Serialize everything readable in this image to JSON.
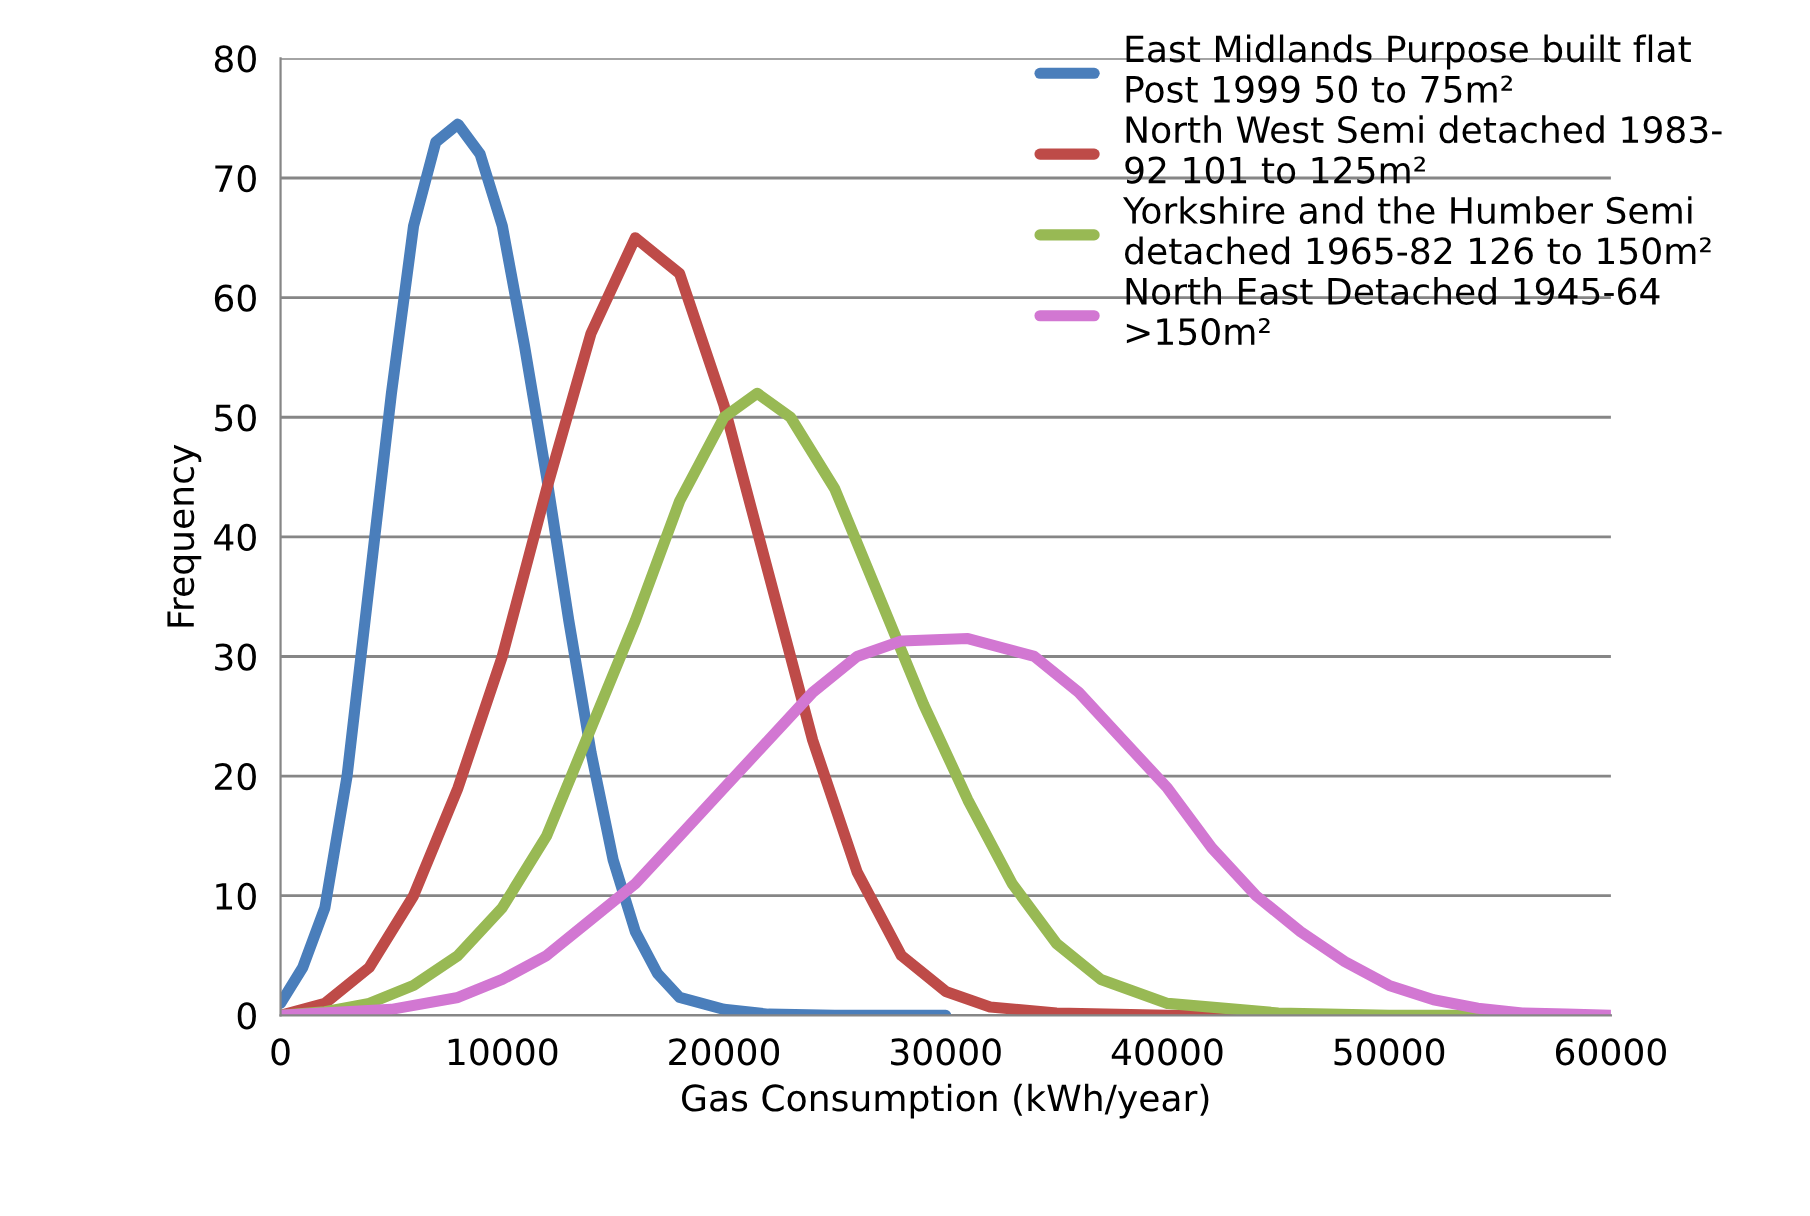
{
  "chart_data": {
    "type": "line",
    "xlabel": "Gas Consumption (kWh/year)",
    "ylabel": "Frequency",
    "xlim": [
      0,
      60000
    ],
    "xticks": [
      0,
      10000,
      20000,
      30000,
      40000,
      50000,
      60000
    ],
    "ylim": [
      0,
      80
    ],
    "yticks": [
      0,
      10,
      20,
      30,
      40,
      50,
      60,
      70,
      80
    ],
    "grid": "y",
    "legend": "top right",
    "marker": "none",
    "line_style": "solid",
    "series": [
      {
        "name": "East Midlands Purpose built flat\nPost 1999 50 to 75m²",
        "color": "#4a7ebb",
        "x": [
          0,
          1000,
          2000,
          3000,
          4000,
          5000,
          6000,
          7000,
          8000,
          9000,
          10000,
          11000,
          12000,
          13000,
          14000,
          15000,
          16000,
          17000,
          18000,
          20000,
          22000,
          25000,
          30000
        ],
        "values": [
          1,
          4,
          9,
          20,
          36,
          52,
          66,
          73,
          74.5,
          72,
          66,
          56,
          45,
          33,
          22,
          13,
          7,
          3.5,
          1.5,
          0.5,
          0.1,
          0,
          0
        ]
      },
      {
        "name": "North West Semi detached 1983-\n92 101 to 125m²",
        "color": "#be4b48",
        "x": [
          0,
          2000,
          4000,
          6000,
          8000,
          10000,
          12000,
          14000,
          16000,
          18000,
          20000,
          22000,
          24000,
          26000,
          28000,
          30000,
          32000,
          35000,
          40000,
          45000
        ],
        "values": [
          0,
          1,
          4,
          10,
          19,
          30,
          44,
          57,
          65,
          62,
          51,
          37,
          23,
          12,
          5,
          2,
          0.7,
          0.2,
          0,
          0
        ]
      },
      {
        "name": "Yorkshire and the Humber Semi\ndetached 1965-82 126 to 150m²",
        "color": "#98b954",
        "x": [
          0,
          2000,
          4000,
          6000,
          8000,
          10000,
          12000,
          14000,
          16000,
          18000,
          20000,
          21500,
          23000,
          25000,
          27000,
          29000,
          31000,
          33000,
          35000,
          37000,
          40000,
          45000,
          50000,
          55000
        ],
        "values": [
          0,
          0.3,
          1,
          2.5,
          5,
          9,
          15,
          24,
          33,
          43,
          50,
          52,
          50,
          44,
          35,
          26,
          18,
          11,
          6,
          3,
          1,
          0.2,
          0,
          0
        ]
      },
      {
        "name": "North East Detached 1945-64\n>150m²",
        "color": "#d277d2",
        "x": [
          0,
          5000,
          8000,
          10000,
          12000,
          14000,
          16000,
          18000,
          20000,
          22000,
          24000,
          26000,
          28000,
          31000,
          34000,
          36000,
          38000,
          40000,
          42000,
          44000,
          46000,
          48000,
          50000,
          52000,
          54000,
          56000,
          58000,
          60000
        ],
        "values": [
          0,
          0.5,
          1.5,
          3,
          5,
          8,
          11,
          15,
          19,
          23,
          27,
          30,
          31.3,
          31.5,
          30,
          27,
          23,
          19,
          14,
          10,
          7,
          4.5,
          2.5,
          1.3,
          0.6,
          0.2,
          0.1,
          0
        ]
      }
    ]
  }
}
